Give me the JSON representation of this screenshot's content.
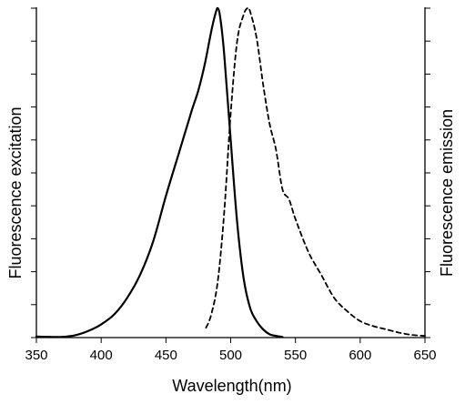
{
  "chart_data": {
    "type": "line",
    "title": "",
    "xlabel": "Wavelength(nm)",
    "ylabel_left": "Fluorescence excitation",
    "ylabel_right": "Fluorescence emission",
    "xlim": [
      350,
      650
    ],
    "ylim": [
      0,
      1
    ],
    "x_ticks": [
      350,
      400,
      450,
      500,
      550,
      600,
      650
    ],
    "x_tick_labels": [
      "350",
      "400",
      "450",
      "500",
      "550",
      "600",
      "650"
    ],
    "y_ticks": [
      0,
      0.1,
      0.2,
      0.3,
      0.4,
      0.5,
      0.6,
      0.7,
      0.8,
      0.9,
      1.0
    ],
    "grid": false,
    "legend": "none",
    "series": [
      {
        "axis": "left",
        "style": "solid",
        "color": "#000000",
        "x": [
          350,
          360,
          370,
          380,
          390,
          400,
          410,
          420,
          430,
          440,
          450,
          460,
          470,
          475,
          480,
          485,
          488,
          490,
          492,
          495,
          500,
          505,
          510,
          515,
          520,
          525,
          530,
          535,
          540
        ],
        "y": [
          0.003,
          0.002,
          0.002,
          0.007,
          0.02,
          0.04,
          0.07,
          0.12,
          0.19,
          0.29,
          0.43,
          0.56,
          0.69,
          0.75,
          0.83,
          0.93,
          0.98,
          1.0,
          0.97,
          0.86,
          0.6,
          0.35,
          0.18,
          0.09,
          0.05,
          0.025,
          0.01,
          0.005,
          0.002
        ]
      },
      {
        "axis": "right",
        "style": "dashed",
        "color": "#000000",
        "x": [
          481,
          485,
          490,
          495,
          500,
          505,
          510,
          513,
          515,
          520,
          525,
          530,
          535,
          540,
          545,
          550,
          560,
          570,
          580,
          590,
          600,
          610,
          620,
          630,
          640,
          650
        ],
        "y": [
          0.03,
          0.07,
          0.17,
          0.38,
          0.68,
          0.9,
          0.98,
          1.0,
          0.99,
          0.91,
          0.77,
          0.65,
          0.57,
          0.45,
          0.42,
          0.36,
          0.26,
          0.19,
          0.12,
          0.08,
          0.05,
          0.035,
          0.025,
          0.015,
          0.008,
          0.005
        ]
      }
    ]
  }
}
